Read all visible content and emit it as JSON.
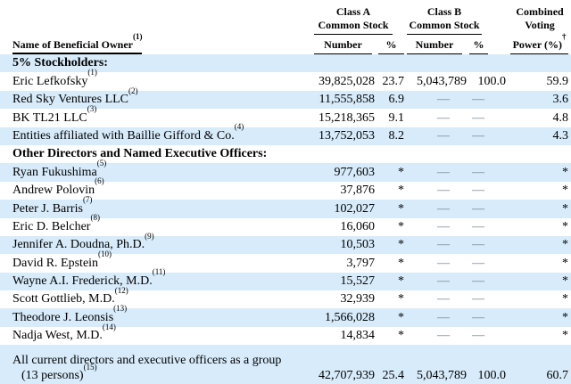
{
  "colors": {
    "row_highlight": "#d7ebfa",
    "dash": "#6f7f89"
  },
  "table": {
    "header": {
      "name": {
        "label": "Name of Beneficial Owner",
        "sup": "(1)"
      },
      "class_a": {
        "line1": "Class A",
        "line2": "Common Stock",
        "number": "Number",
        "pct": "%"
      },
      "class_b": {
        "line1": "Class B",
        "line2": "Common Stock",
        "number": "Number",
        "pct": "%"
      },
      "combined": {
        "line1": "Combined",
        "line2": "Voting",
        "line3": "Power (%)",
        "sup": "†"
      }
    },
    "rows": [
      {
        "type": "section",
        "name": "5% Stockholders:",
        "shaded": true
      },
      {
        "type": "data",
        "name": "Eric Lefkofsky",
        "sup": "(1)",
        "a_number": "39,825,028",
        "a_pct": "23.7",
        "b_number": "5,043,789",
        "b_pct": "100.0",
        "combined": "59.9",
        "shaded": false
      },
      {
        "type": "data",
        "name": "Red Sky Ventures LLC",
        "sup": "(2)",
        "a_number": "11,555,858",
        "a_pct": "6.9",
        "b_number": "—",
        "b_pct": "—",
        "combined": "3.6",
        "shaded": true
      },
      {
        "type": "data",
        "name": "BK TL21 LLC",
        "sup": "(3)",
        "a_number": "15,218,365",
        "a_pct": "9.1",
        "b_number": "—",
        "b_pct": "—",
        "combined": "4.8",
        "shaded": false
      },
      {
        "type": "data",
        "name": "Entities affiliated with Baillie Gifford & Co.",
        "sup": "(4)",
        "a_number": "13,752,053",
        "a_pct": "8.2",
        "b_number": "—",
        "b_pct": "—",
        "combined": "4.3",
        "shaded": true
      },
      {
        "type": "section",
        "name": "Other Directors and Named Executive Officers:",
        "shaded": false
      },
      {
        "type": "data",
        "name": "Ryan Fukushima",
        "sup": "(5)",
        "a_number": "977,603",
        "a_pct": "*",
        "b_number": "—",
        "b_pct": "—",
        "combined": "*",
        "shaded": true
      },
      {
        "type": "data",
        "name": "Andrew Polovin",
        "sup": "(6)",
        "a_number": "37,876",
        "a_pct": "*",
        "b_number": "—",
        "b_pct": "—",
        "combined": "*",
        "shaded": false
      },
      {
        "type": "data",
        "name": "Peter J. Barris",
        "sup": "(7)",
        "a_number": "102,027",
        "a_pct": "*",
        "b_number": "—",
        "b_pct": "—",
        "combined": "*",
        "shaded": true
      },
      {
        "type": "data",
        "name": "Eric D. Belcher",
        "sup": "(8)",
        "a_number": "16,060",
        "a_pct": "*",
        "b_number": "—",
        "b_pct": "—",
        "combined": "*",
        "shaded": false
      },
      {
        "type": "data",
        "name": "Jennifer A. Doudna, Ph.D.",
        "sup": "(9)",
        "a_number": "10,503",
        "a_pct": "*",
        "b_number": "—",
        "b_pct": "—",
        "combined": "*",
        "shaded": true
      },
      {
        "type": "data",
        "name": "David R. Epstein",
        "sup": "(10)",
        "a_number": "3,797",
        "a_pct": "*",
        "b_number": "—",
        "b_pct": "—",
        "combined": "*",
        "shaded": false
      },
      {
        "type": "data",
        "name": "Wayne A.I. Frederick, M.D.",
        "sup": "(11)",
        "a_number": "15,527",
        "a_pct": "*",
        "b_number": "—",
        "b_pct": "—",
        "combined": "*",
        "shaded": true
      },
      {
        "type": "data",
        "name": "Scott Gottlieb, M.D.",
        "sup": "(12)",
        "a_number": "32,939",
        "a_pct": "*",
        "b_number": "—",
        "b_pct": "—",
        "combined": "*",
        "shaded": false
      },
      {
        "type": "data",
        "name": "Theodore J. Leonsis",
        "sup": "(13)",
        "a_number": "1,566,028",
        "a_pct": "*",
        "b_number": "—",
        "b_pct": "—",
        "combined": "*",
        "shaded": true
      },
      {
        "type": "data",
        "name": "Nadja West, M.D.",
        "sup": "(14)",
        "a_number": "14,834",
        "a_pct": "*",
        "b_number": "—",
        "b_pct": "—",
        "combined": "*",
        "shaded": false
      },
      {
        "type": "data",
        "name": "All current directors and executive officers as a group",
        "name_line2": "(13 persons)",
        "sup2": "(15)",
        "a_number": "42,707,939",
        "a_pct": "25.4",
        "b_number": "5,043,789",
        "b_pct": "100.0",
        "combined": "60.7",
        "shaded": true,
        "tall": true
      }
    ]
  }
}
